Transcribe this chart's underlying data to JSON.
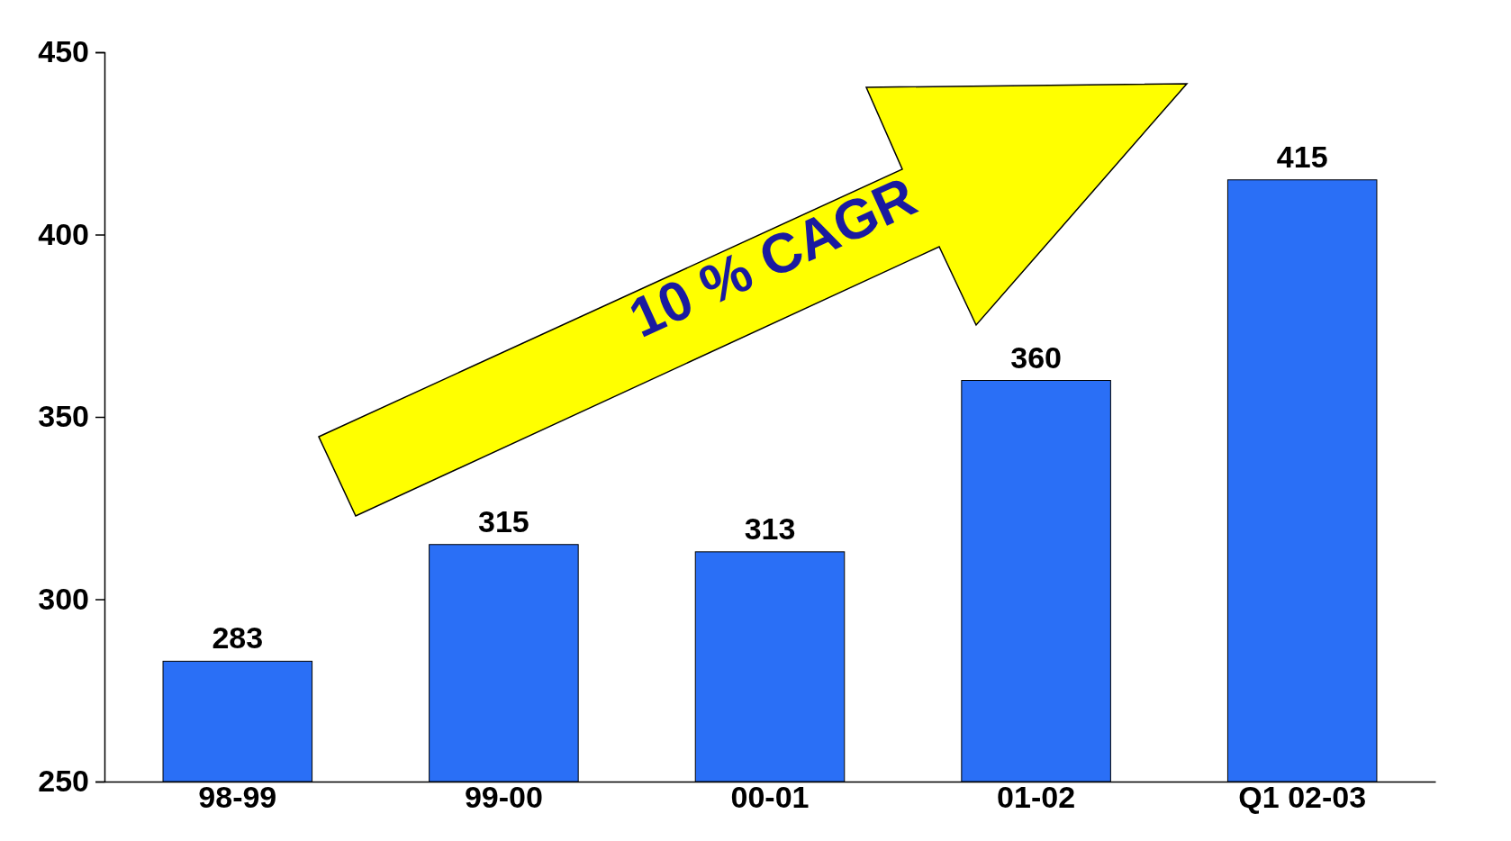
{
  "chart_data": {
    "type": "bar",
    "categories": [
      "98-99",
      "99-00",
      "00-01",
      "01-02",
      "Q1 02-03"
    ],
    "values": [
      283,
      315,
      313,
      360,
      415
    ],
    "color": "#2a6ff6",
    "ylim": [
      250,
      450
    ],
    "yticks": [
      250,
      300,
      350,
      400,
      450
    ],
    "data_labels": true,
    "annotations": [
      "10 % CAGR"
    ]
  }
}
